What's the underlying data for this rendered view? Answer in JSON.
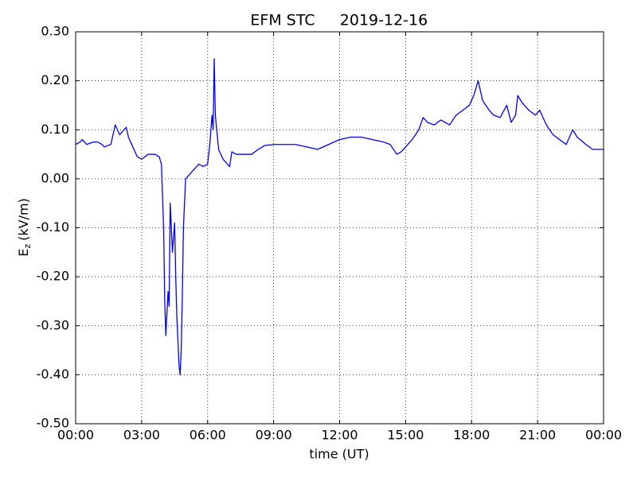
{
  "chart_data": {
    "type": "line",
    "title": "EFM STC",
    "subtitle": "2019-12-16",
    "x_label": "time (UT)",
    "y_label": [
      "E",
      "z",
      "(kV/m)"
    ],
    "color": "#0000ff",
    "grid": true,
    "xlim": [
      0,
      24
    ],
    "xticks": [
      {
        "value": 0,
        "label": "00:00"
      },
      {
        "value": 3,
        "label": "03:00"
      },
      {
        "value": 6,
        "label": "06:00"
      },
      {
        "value": 9,
        "label": "09:00"
      },
      {
        "value": 12,
        "label": "12:00"
      },
      {
        "value": 15,
        "label": "15:00"
      },
      {
        "value": 18,
        "label": "18:00"
      },
      {
        "value": 21,
        "label": "21:00"
      },
      {
        "value": 24,
        "label": "00:00"
      }
    ],
    "ylim": [
      -0.5,
      0.3
    ],
    "yticks": [
      {
        "value": -0.5,
        "label": "-0.50"
      },
      {
        "value": -0.4,
        "label": "-0.40"
      },
      {
        "value": -0.3,
        "label": "-0.30"
      },
      {
        "value": -0.2,
        "label": "-0.20"
      },
      {
        "value": -0.1,
        "label": "-0.10"
      },
      {
        "value": 0,
        "label": "0.00"
      },
      {
        "value": 0.1,
        "label": "0.10"
      },
      {
        "value": 0.2,
        "label": "0.20"
      },
      {
        "value": 0.3,
        "label": "0.30"
      }
    ],
    "x": [
      0,
      0.2,
      0.3,
      0.5,
      0.8,
      1.0,
      1.2,
      1.3,
      1.6,
      1.8,
      2.0,
      2.2,
      2.3,
      2.4,
      2.6,
      2.8,
      3.0,
      3.3,
      3.6,
      3.8,
      3.9,
      4.0,
      4.05,
      4.1,
      4.2,
      4.25,
      4.3,
      4.4,
      4.5,
      4.55,
      4.6,
      4.7,
      4.75,
      4.8,
      4.85,
      4.9,
      5.0,
      5.2,
      5.4,
      5.6,
      5.8,
      6.0,
      6.1,
      6.2,
      6.25,
      6.3,
      6.35,
      6.5,
      6.7,
      6.9,
      7.0,
      7.1,
      7.3,
      7.6,
      8.0,
      8.3,
      8.6,
      9.0,
      9.5,
      10.0,
      10.5,
      11.0,
      11.5,
      12.0,
      12.5,
      13.0,
      13.5,
      14.0,
      14.3,
      14.6,
      14.8,
      15.0,
      15.3,
      15.6,
      15.8,
      16.0,
      16.3,
      16.6,
      17.0,
      17.3,
      17.6,
      17.9,
      18.1,
      18.3,
      18.5,
      18.8,
      19.0,
      19.3,
      19.6,
      19.8,
      20.0,
      20.1,
      20.3,
      20.6,
      20.9,
      21.1,
      21.4,
      21.7,
      22.0,
      22.3,
      22.6,
      22.8,
      23.2,
      23.5,
      24.0
    ],
    "values": [
      0.07,
      0.075,
      0.08,
      0.07,
      0.075,
      0.075,
      0.07,
      0.065,
      0.07,
      0.11,
      0.09,
      0.1,
      0.105,
      0.085,
      0.065,
      0.045,
      0.04,
      0.05,
      0.05,
      0.045,
      0.03,
      -0.1,
      -0.25,
      -0.32,
      -0.23,
      -0.26,
      -0.05,
      -0.15,
      -0.09,
      -0.2,
      -0.28,
      -0.38,
      -0.4,
      -0.35,
      -0.24,
      -0.1,
      0.0,
      0.01,
      0.02,
      0.03,
      0.025,
      0.03,
      0.07,
      0.13,
      0.1,
      0.245,
      0.13,
      0.06,
      0.04,
      0.03,
      0.025,
      0.055,
      0.05,
      0.05,
      0.05,
      0.06,
      0.068,
      0.07,
      0.07,
      0.07,
      0.065,
      0.06,
      0.07,
      0.08,
      0.085,
      0.085,
      0.08,
      0.075,
      0.07,
      0.05,
      0.055,
      0.065,
      0.08,
      0.1,
      0.125,
      0.115,
      0.11,
      0.12,
      0.11,
      0.13,
      0.14,
      0.15,
      0.17,
      0.2,
      0.16,
      0.14,
      0.13,
      0.125,
      0.15,
      0.115,
      0.13,
      0.17,
      0.155,
      0.14,
      0.13,
      0.14,
      0.11,
      0.09,
      0.08,
      0.07,
      0.1,
      0.085,
      0.07,
      0.06,
      0.06
    ]
  }
}
